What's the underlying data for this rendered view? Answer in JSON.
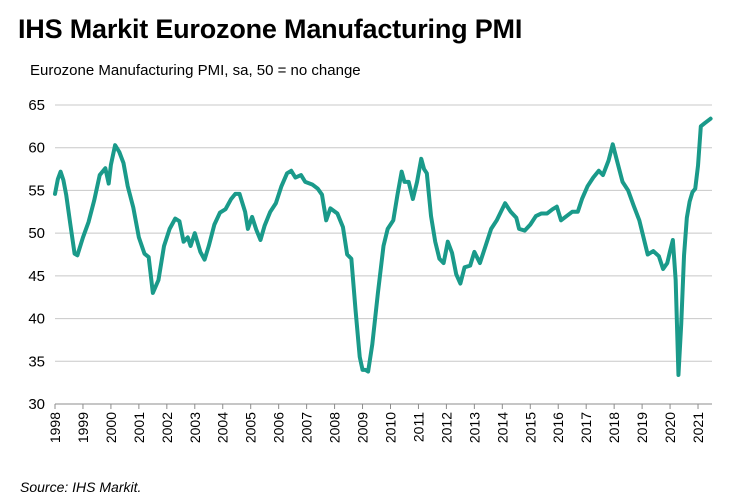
{
  "chart_data": {
    "type": "line",
    "title": "IHS Markit Eurozone Manufacturing PMI",
    "subtitle": "Eurozone Manufacturing PMI, sa, 50 = no change",
    "source": "Source: IHS Markit.",
    "xlabel": "",
    "ylabel": "",
    "ylim": [
      30,
      65
    ],
    "xlim": [
      1998,
      2021.5
    ],
    "y_ticks": [
      "30",
      "35",
      "40",
      "45",
      "50",
      "55",
      "60",
      "65"
    ],
    "x_ticks": [
      "1998",
      "1999",
      "2000",
      "2001",
      "2002",
      "2003",
      "2004",
      "2005",
      "2006",
      "2007",
      "2008",
      "2009",
      "2010",
      "2011",
      "2012",
      "2013",
      "2014",
      "2015",
      "2016",
      "2017",
      "2018",
      "2019",
      "2020",
      "2021"
    ],
    "grid": "horizontal",
    "line_color": "#1a9a8a",
    "series": [
      {
        "name": "",
        "points": [
          [
            1998.0,
            54.6
          ],
          [
            1998.1,
            56.3
          ],
          [
            1998.2,
            57.2
          ],
          [
            1998.3,
            56.2
          ],
          [
            1998.4,
            54.5
          ],
          [
            1998.55,
            51.0
          ],
          [
            1998.7,
            47.6
          ],
          [
            1998.8,
            47.4
          ],
          [
            1999.0,
            49.5
          ],
          [
            1999.2,
            51.3
          ],
          [
            1999.4,
            53.8
          ],
          [
            1999.6,
            56.8
          ],
          [
            1999.8,
            57.6
          ],
          [
            1999.92,
            55.8
          ],
          [
            2000.0,
            58.0
          ],
          [
            2000.15,
            60.3
          ],
          [
            2000.3,
            59.5
          ],
          [
            2000.45,
            58.2
          ],
          [
            2000.6,
            55.5
          ],
          [
            2000.8,
            53.0
          ],
          [
            2001.0,
            49.5
          ],
          [
            2001.2,
            47.6
          ],
          [
            2001.35,
            47.2
          ],
          [
            2001.5,
            43.0
          ],
          [
            2001.7,
            44.5
          ],
          [
            2001.9,
            48.5
          ],
          [
            2002.1,
            50.5
          ],
          [
            2002.3,
            51.7
          ],
          [
            2002.45,
            51.4
          ],
          [
            2002.6,
            49.0
          ],
          [
            2002.75,
            49.5
          ],
          [
            2002.85,
            48.5
          ],
          [
            2003.0,
            50.0
          ],
          [
            2003.2,
            47.8
          ],
          [
            2003.35,
            46.9
          ],
          [
            2003.5,
            48.5
          ],
          [
            2003.7,
            51.0
          ],
          [
            2003.9,
            52.4
          ],
          [
            2004.1,
            52.8
          ],
          [
            2004.3,
            54.0
          ],
          [
            2004.45,
            54.6
          ],
          [
            2004.6,
            54.6
          ],
          [
            2004.8,
            52.5
          ],
          [
            2004.9,
            50.5
          ],
          [
            2005.05,
            51.9
          ],
          [
            2005.2,
            50.4
          ],
          [
            2005.35,
            49.2
          ],
          [
            2005.5,
            50.9
          ],
          [
            2005.7,
            52.5
          ],
          [
            2005.9,
            53.5
          ],
          [
            2006.1,
            55.5
          ],
          [
            2006.3,
            57.0
          ],
          [
            2006.45,
            57.3
          ],
          [
            2006.6,
            56.5
          ],
          [
            2006.8,
            56.8
          ],
          [
            2006.95,
            56.0
          ],
          [
            2007.2,
            55.7
          ],
          [
            2007.4,
            55.2
          ],
          [
            2007.55,
            54.5
          ],
          [
            2007.7,
            51.5
          ],
          [
            2007.85,
            52.9
          ],
          [
            2008.1,
            52.3
          ],
          [
            2008.3,
            50.7
          ],
          [
            2008.45,
            47.5
          ],
          [
            2008.6,
            47.0
          ],
          [
            2008.75,
            41.0
          ],
          [
            2008.9,
            35.5
          ],
          [
            2009.0,
            34.0
          ],
          [
            2009.1,
            34.0
          ],
          [
            2009.2,
            33.8
          ],
          [
            2009.35,
            37.0
          ],
          [
            2009.55,
            43.0
          ],
          [
            2009.75,
            48.5
          ],
          [
            2009.9,
            50.5
          ],
          [
            2010.1,
            51.5
          ],
          [
            2010.25,
            54.5
          ],
          [
            2010.4,
            57.2
          ],
          [
            2010.5,
            56.0
          ],
          [
            2010.65,
            56.0
          ],
          [
            2010.8,
            54.0
          ],
          [
            2010.95,
            56.0
          ],
          [
            2011.1,
            58.7
          ],
          [
            2011.2,
            57.5
          ],
          [
            2011.3,
            57.0
          ],
          [
            2011.45,
            52.0
          ],
          [
            2011.6,
            49.0
          ],
          [
            2011.75,
            47.0
          ],
          [
            2011.9,
            46.5
          ],
          [
            2012.05,
            49.0
          ],
          [
            2012.2,
            47.7
          ],
          [
            2012.35,
            45.2
          ],
          [
            2012.5,
            44.1
          ],
          [
            2012.65,
            46.0
          ],
          [
            2012.85,
            46.2
          ],
          [
            2013.0,
            47.8
          ],
          [
            2013.2,
            46.5
          ],
          [
            2013.4,
            48.5
          ],
          [
            2013.6,
            50.5
          ],
          [
            2013.8,
            51.5
          ],
          [
            2013.95,
            52.5
          ],
          [
            2014.1,
            53.5
          ],
          [
            2014.3,
            52.5
          ],
          [
            2014.5,
            51.8
          ],
          [
            2014.6,
            50.5
          ],
          [
            2014.8,
            50.3
          ],
          [
            2015.0,
            51.0
          ],
          [
            2015.2,
            52.0
          ],
          [
            2015.4,
            52.3
          ],
          [
            2015.6,
            52.3
          ],
          [
            2015.8,
            52.8
          ],
          [
            2015.95,
            53.1
          ],
          [
            2016.1,
            51.5
          ],
          [
            2016.3,
            52.0
          ],
          [
            2016.5,
            52.5
          ],
          [
            2016.7,
            52.5
          ],
          [
            2016.85,
            54.0
          ],
          [
            2017.05,
            55.5
          ],
          [
            2017.25,
            56.5
          ],
          [
            2017.45,
            57.3
          ],
          [
            2017.6,
            56.8
          ],
          [
            2017.8,
            58.5
          ],
          [
            2017.95,
            60.4
          ],
          [
            2018.1,
            58.5
          ],
          [
            2018.3,
            56.0
          ],
          [
            2018.5,
            55.0
          ],
          [
            2018.7,
            53.2
          ],
          [
            2018.9,
            51.5
          ],
          [
            2019.05,
            49.5
          ],
          [
            2019.2,
            47.5
          ],
          [
            2019.4,
            47.9
          ],
          [
            2019.6,
            47.3
          ],
          [
            2019.75,
            45.8
          ],
          [
            2019.9,
            46.5
          ],
          [
            2020.0,
            47.9
          ],
          [
            2020.1,
            49.2
          ],
          [
            2020.2,
            44.5
          ],
          [
            2020.3,
            33.4
          ],
          [
            2020.4,
            39.4
          ],
          [
            2020.5,
            47.4
          ],
          [
            2020.6,
            51.8
          ],
          [
            2020.7,
            53.7
          ],
          [
            2020.8,
            54.8
          ],
          [
            2020.9,
            55.2
          ],
          [
            2021.0,
            57.9
          ],
          [
            2021.1,
            62.5
          ],
          [
            2021.25,
            62.9
          ],
          [
            2021.45,
            63.4
          ]
        ]
      }
    ]
  }
}
